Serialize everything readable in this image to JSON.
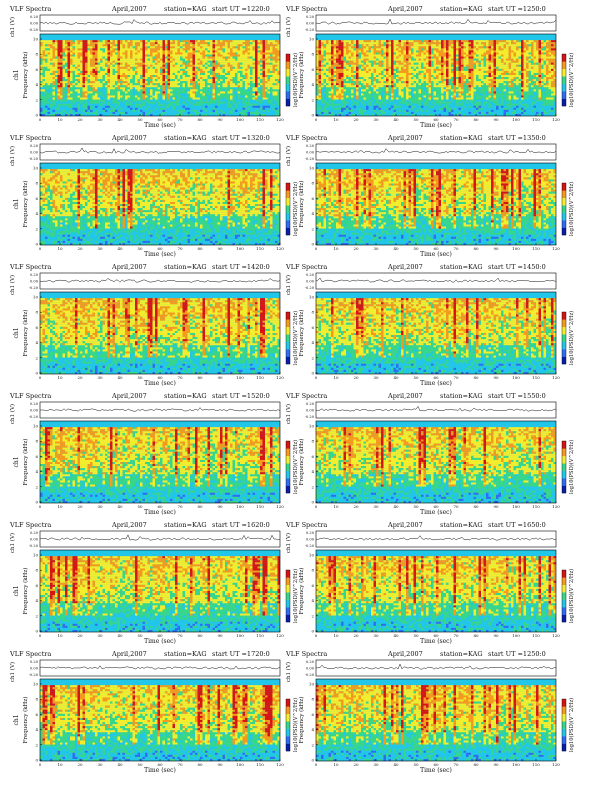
{
  "page": {
    "background": "#ffffff"
  },
  "colormap": [
    "#0a1fa8",
    "#2f6cf0",
    "#22c6e8",
    "#38d68a",
    "#f2ee2e",
    "#f49a1e",
    "#d61414"
  ],
  "common": {
    "title": "VLF Spectra",
    "station": "station=KAG",
    "signal_axis_label": "ch1 (V)",
    "signal_ticks": [
      "0.20",
      "0.00",
      "-0.20"
    ],
    "freq_axis_label": "Frequency (kHz)",
    "freq_ticks": [
      "0",
      "2",
      "4",
      "6",
      "8",
      "10"
    ],
    "ch_label": "ch1",
    "x_axis_label": "Time (sec)",
    "x_ticks": [
      "0",
      "10",
      "20",
      "30",
      "40",
      "50",
      "60",
      "70",
      "80",
      "90",
      "100",
      "110",
      "120"
    ],
    "colorbar_label": "log10(PSD)(V^2/Hz)"
  },
  "chart_data": [
    {
      "type": "heatmap",
      "date": "April,2007",
      "start_ut": "start UT =1220:0",
      "xlim": [
        0,
        120
      ],
      "ylim": [
        0,
        10
      ],
      "xlabel": "Time (sec)",
      "ylabel": "Frequency (kHz)"
    },
    {
      "type": "heatmap",
      "date": "April,2007",
      "start_ut": "start UT =1250:0",
      "xlim": [
        0,
        120
      ],
      "ylim": [
        0,
        10
      ],
      "xlabel": "Time (sec)",
      "ylabel": "Frequency (kHz)"
    },
    {
      "type": "heatmap",
      "date": "April,2007",
      "start_ut": "start UT =1320:0",
      "xlim": [
        0,
        120
      ],
      "ylim": [
        0,
        10
      ],
      "xlabel": "Time (sec)",
      "ylabel": "Frequency (kHz)"
    },
    {
      "type": "heatmap",
      "date": "April,2007",
      "start_ut": "start UT =1350:0",
      "xlim": [
        0,
        120
      ],
      "ylim": [
        0,
        10
      ],
      "xlabel": "Time (sec)",
      "ylabel": "Frequency (kHz)"
    },
    {
      "type": "heatmap",
      "date": "April,2007",
      "start_ut": "start UT =1420:0",
      "xlim": [
        0,
        120
      ],
      "ylim": [
        0,
        10
      ],
      "xlabel": "Time (sec)",
      "ylabel": "Frequency (kHz)"
    },
    {
      "type": "heatmap",
      "date": "April,2007",
      "start_ut": "start UT =1450:0",
      "xlim": [
        0,
        120
      ],
      "ylim": [
        0,
        10
      ],
      "xlabel": "Time (sec)",
      "ylabel": "Frequency (kHz)"
    },
    {
      "type": "heatmap",
      "date": "April,2007",
      "start_ut": "start UT =1520:0",
      "xlim": [
        0,
        120
      ],
      "ylim": [
        0,
        10
      ],
      "xlabel": "Time (sec)",
      "ylabel": "Frequency (kHz)"
    },
    {
      "type": "heatmap",
      "date": "April,2007",
      "start_ut": "start UT =1550:0",
      "xlim": [
        0,
        120
      ],
      "ylim": [
        0,
        10
      ],
      "xlabel": "Time (sec)",
      "ylabel": "Frequency (kHz)"
    },
    {
      "type": "heatmap",
      "date": "April,2007",
      "start_ut": "start UT =1620:0",
      "xlim": [
        0,
        120
      ],
      "ylim": [
        0,
        10
      ],
      "xlabel": "Time (sec)",
      "ylabel": "Frequency (kHz)"
    },
    {
      "type": "heatmap",
      "date": "April,2007",
      "start_ut": "start UT =1650:0",
      "xlim": [
        0,
        120
      ],
      "ylim": [
        0,
        10
      ],
      "xlabel": "Time (sec)",
      "ylabel": "Frequency (kHz)"
    },
    {
      "type": "heatmap",
      "date": "April,2007",
      "start_ut": "start UT =1720:0",
      "xlim": [
        0,
        120
      ],
      "ylim": [
        0,
        10
      ],
      "xlabel": "Time (sec)",
      "ylabel": "Frequency (kHz)"
    },
    {
      "type": "heatmap",
      "date": "April,2007",
      "start_ut": "start UT =1250:0",
      "xlim": [
        0,
        120
      ],
      "ylim": [
        0,
        10
      ],
      "xlabel": "Time (sec)",
      "ylabel": "Frequency (kHz)"
    }
  ]
}
